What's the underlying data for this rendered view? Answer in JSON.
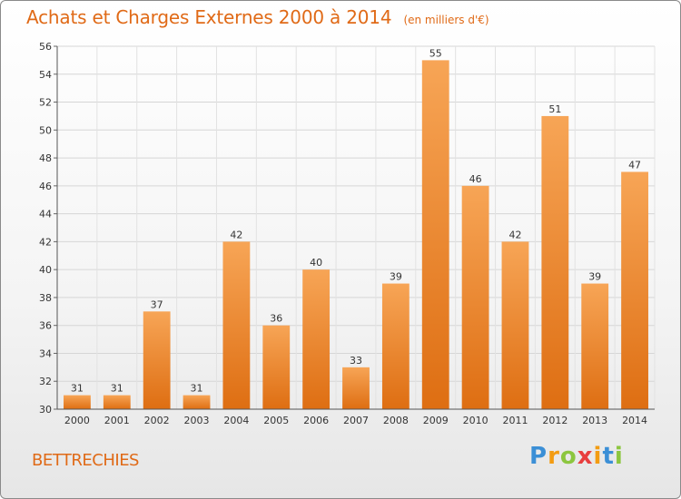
{
  "chart_data": {
    "type": "bar",
    "title": "Achats et Charges Externes 2000 à 2014",
    "unit": "(en milliers d'€)",
    "categories": [
      "2000",
      "2001",
      "2002",
      "2003",
      "2004",
      "2005",
      "2006",
      "2007",
      "2008",
      "2009",
      "2010",
      "2011",
      "2012",
      "2013",
      "2014"
    ],
    "values": [
      31,
      31,
      37,
      31,
      42,
      36,
      40,
      33,
      39,
      55,
      46,
      42,
      51,
      39,
      47
    ],
    "ylim": [
      30,
      56
    ],
    "yticks": [
      30,
      32,
      34,
      36,
      38,
      40,
      42,
      44,
      46,
      48,
      50,
      52,
      54,
      56
    ],
    "grid": true,
    "colors": {
      "bar_top": "#f7a556",
      "bar_bottom": "#de6e12",
      "text": "#e06a17"
    }
  },
  "commune": "BETTRECHIES",
  "logo": {
    "letters": [
      "P",
      "r",
      "o",
      "x",
      "i",
      "t",
      "i"
    ],
    "colors": [
      "#3b8fd6",
      "#f39c12",
      "#8cc63f",
      "#e83e3e",
      "#f39c12",
      "#3b8fd6",
      "#8cc63f"
    ]
  }
}
